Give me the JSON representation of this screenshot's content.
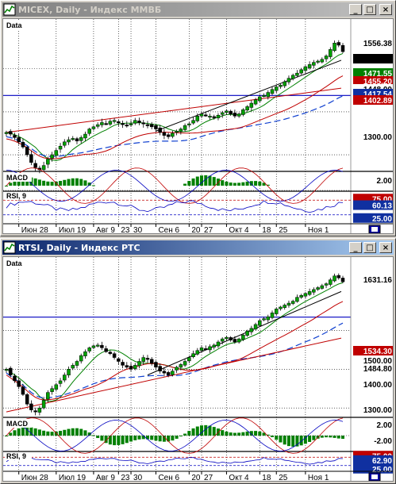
{
  "windows": [
    {
      "title": "MICEX, Daily - Индекс ММВБ",
      "active": false,
      "buttons": {
        "minimize": "_",
        "maximize": "□",
        "close": "×"
      },
      "panes": {
        "price_label": "Data",
        "macd_label": "MACD",
        "rsi_label": "RSI, 9"
      },
      "price_tags": [
        "1556.38",
        "1471.55",
        "1455.20",
        "1448.00",
        "1417.54",
        "1402.89",
        "1300.00"
      ],
      "macd_tag": "2.00",
      "rsi_tags": [
        "75.00",
        "60.13",
        "25.00"
      ],
      "xaxis": [
        "Июн 28",
        "Июл 19",
        "Авг 9",
        "23",
        "30",
        "Сен 6",
        "20",
        "27",
        "Окт 4",
        "18",
        "25",
        "Ноя 1"
      ]
    },
    {
      "title": "RTSI, Daily - Индекс РТС",
      "active": true,
      "buttons": {
        "minimize": "_",
        "maximize": "□",
        "close": "×"
      },
      "panes": {
        "price_label": "Data",
        "macd_label": "MACD",
        "rsi_label": "RSI, 9"
      },
      "price_tags": [
        "1631.16",
        "1534.30",
        "1500.00",
        "1484.80",
        "1400.00",
        "1300.00"
      ],
      "macd_tag": "2.00",
      "macd_tag2": "-2.00",
      "rsi_tags": [
        "75.00",
        "62.90",
        "25.00"
      ],
      "xaxis": [
        "Июн 28",
        "Июл 19",
        "Авг 9",
        "23",
        "30",
        "Сен 6",
        "20",
        "27",
        "Окт 4",
        "18",
        "25",
        "Ноя 1"
      ]
    }
  ],
  "chart_data": [
    {
      "type": "line",
      "title": "MICEX, Daily - Индекс ММВБ",
      "series": [
        {
          "name": "Data",
          "values": [
            1352,
            1348,
            1340,
            1330,
            1318,
            1300,
            1282,
            1270,
            1265,
            1275,
            1290,
            1300,
            1310,
            1320,
            1330,
            1335,
            1338,
            1332,
            1340,
            1348,
            1360,
            1365,
            1370,
            1375,
            1372,
            1378,
            1380,
            1375,
            1370,
            1368,
            1372,
            1380,
            1375,
            1372,
            1370,
            1365,
            1360,
            1352,
            1345,
            1342,
            1350,
            1355,
            1360,
            1368,
            1372,
            1380,
            1390,
            1395,
            1392,
            1390,
            1388,
            1392,
            1398,
            1402,
            1395,
            1390,
            1395,
            1405,
            1412,
            1420,
            1428,
            1435,
            1438,
            1445,
            1452,
            1458,
            1462,
            1470,
            1478,
            1485,
            1490,
            1498,
            1505,
            1510,
            1515,
            1518,
            1522,
            1530,
            1545,
            1560,
            1555,
            1540
          ]
        }
      ],
      "ylim": [
        1265,
        1590
      ]
    },
    {
      "type": "line",
      "title": "RTSI, Daily - Индекс РТС",
      "series": [
        {
          "name": "Data",
          "values": [
            1400,
            1385,
            1370,
            1355,
            1335,
            1310,
            1295,
            1290,
            1300,
            1320,
            1340,
            1350,
            1360,
            1370,
            1385,
            1400,
            1410,
            1420,
            1435,
            1445,
            1455,
            1460,
            1462,
            1455,
            1445,
            1440,
            1430,
            1420,
            1410,
            1405,
            1400,
            1410,
            1420,
            1430,
            1425,
            1415,
            1405,
            1395,
            1390,
            1385,
            1395,
            1405,
            1412,
            1420,
            1430,
            1440,
            1448,
            1455,
            1452,
            1458,
            1462,
            1470,
            1478,
            1482,
            1475,
            1470,
            1478,
            1488,
            1498,
            1505,
            1515,
            1525,
            1530,
            1535,
            1545,
            1555,
            1560,
            1565,
            1570,
            1575,
            1585,
            1590,
            1595,
            1600,
            1605,
            1610,
            1615,
            1620,
            1630,
            1640,
            1635,
            1625
          ]
        }
      ],
      "ylim": [
        1280,
        1660
      ]
    }
  ]
}
